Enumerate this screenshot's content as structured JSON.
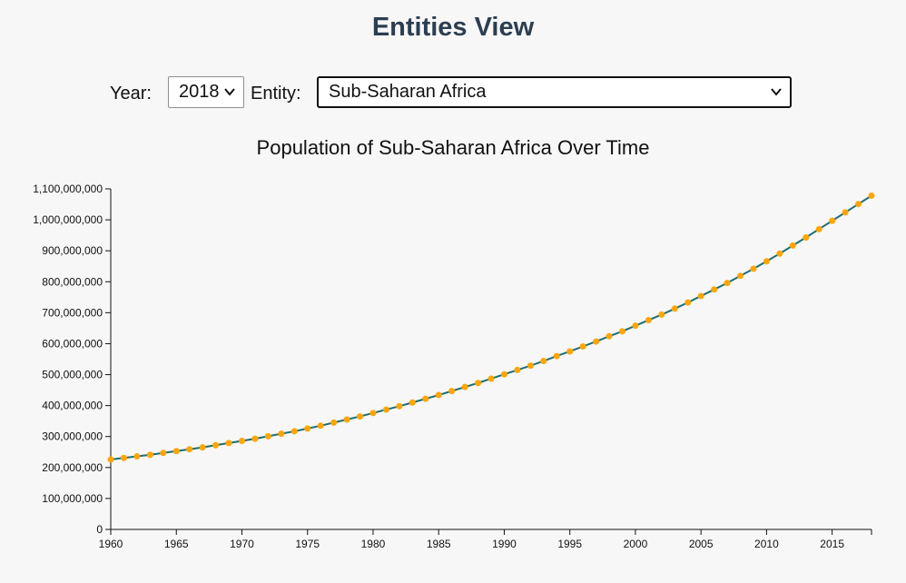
{
  "header": {
    "title": "Entities View"
  },
  "controls": {
    "year_label": "Year:",
    "year_value": "2018",
    "entity_label": "Entity:",
    "entity_value": "Sub-Saharan Africa"
  },
  "colors": {
    "title": "#2c3e50",
    "line": "#1b6f7a",
    "point": "#ffa500",
    "background": "#f7f7f7"
  },
  "chart_data": {
    "type": "line",
    "title": "Population of Sub-Saharan Africa Over Time",
    "xlabel": "",
    "ylabel": "",
    "xlim": [
      1960,
      2018
    ],
    "ylim": [
      0,
      1100000000
    ],
    "x_ticks": [
      1960,
      1965,
      1970,
      1975,
      1980,
      1985,
      1990,
      1995,
      2000,
      2005,
      2010,
      2015
    ],
    "x_tick_labels": [
      "1960",
      "1965",
      "1970",
      "1975",
      "1980",
      "1985",
      "1990",
      "1995",
      "2000",
      "2005",
      "2010",
      "2015"
    ],
    "y_ticks": [
      0,
      100000000,
      200000000,
      300000000,
      400000000,
      500000000,
      600000000,
      700000000,
      800000000,
      900000000,
      1000000000,
      1100000000
    ],
    "y_tick_labels": [
      "0",
      "100,000,000",
      "200,000,000",
      "300,000,000",
      "400,000,000",
      "500,000,000",
      "600,000,000",
      "700,000,000",
      "800,000,000",
      "900,000,000",
      "1,000,000,000",
      "1,100,000,000"
    ],
    "grid": false,
    "x": [
      1960,
      1961,
      1962,
      1963,
      1964,
      1965,
      1966,
      1967,
      1968,
      1969,
      1970,
      1971,
      1972,
      1973,
      1974,
      1975,
      1976,
      1977,
      1978,
      1979,
      1980,
      1981,
      1982,
      1983,
      1984,
      1985,
      1986,
      1987,
      1988,
      1989,
      1990,
      1991,
      1992,
      1993,
      1994,
      1995,
      1996,
      1997,
      1998,
      1999,
      2000,
      2001,
      2002,
      2003,
      2004,
      2005,
      2006,
      2007,
      2008,
      2009,
      2010,
      2011,
      2012,
      2013,
      2014,
      2015,
      2016,
      2017,
      2018
    ],
    "series": [
      {
        "values": [
          226000000,
          231000000,
          236000000,
          241000000,
          247000000,
          253000000,
          259000000,
          265000000,
          272000000,
          279000000,
          286000000,
          293000000,
          301000000,
          309000000,
          317000000,
          326000000,
          335000000,
          345000000,
          355000000,
          365000000,
          376000000,
          387000000,
          398000000,
          410000000,
          422000000,
          434000000,
          447000000,
          460000000,
          473000000,
          487000000,
          501000000,
          515000000,
          529000000,
          544000000,
          560000000,
          575000000,
          591000000,
          607000000,
          624000000,
          640000000,
          658000000,
          676000000,
          694000000,
          713000000,
          733000000,
          754000000,
          775000000,
          796000000,
          819000000,
          842000000,
          866000000,
          891000000,
          917000000,
          943000000,
          970000000,
          997000000,
          1024000000,
          1051000000,
          1078000000
        ]
      }
    ]
  }
}
